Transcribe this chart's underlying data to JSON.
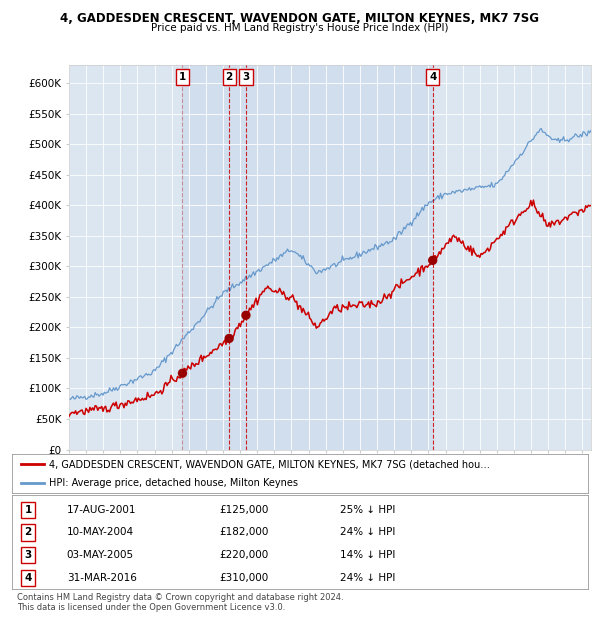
{
  "title1": "4, GADDESDEN CRESCENT, WAVENDON GATE, MILTON KEYNES, MK7 7SG",
  "title2": "Price paid vs. HM Land Registry's House Price Index (HPI)",
  "ylim": [
    0,
    630000
  ],
  "yticks": [
    0,
    50000,
    100000,
    150000,
    200000,
    250000,
    300000,
    350000,
    400000,
    450000,
    500000,
    550000,
    600000
  ],
  "ytick_labels": [
    "£0",
    "£50K",
    "£100K",
    "£150K",
    "£200K",
    "£250K",
    "£300K",
    "£350K",
    "£400K",
    "£450K",
    "£500K",
    "£550K",
    "£600K"
  ],
  "plot_bg": "#dce6f1",
  "transactions": [
    {
      "num": 1,
      "date": "17-AUG-2001",
      "price": 125000,
      "pct": "25%",
      "year": 2001.63,
      "vline_style": "--",
      "vline_color": "#c07070",
      "vline_alpha": 0.7
    },
    {
      "num": 2,
      "date": "10-MAY-2004",
      "price": 182000,
      "pct": "24%",
      "year": 2004.36,
      "vline_style": "--",
      "vline_color": "#cc0000",
      "vline_alpha": 0.85
    },
    {
      "num": 3,
      "date": "03-MAY-2005",
      "price": 220000,
      "pct": "14%",
      "year": 2005.34,
      "vline_style": "--",
      "vline_color": "#cc0000",
      "vline_alpha": 0.85
    },
    {
      "num": 4,
      "date": "31-MAR-2016",
      "price": 310000,
      "pct": "24%",
      "year": 2016.25,
      "vline_style": "--",
      "vline_color": "#cc0000",
      "vline_alpha": 0.85
    }
  ],
  "legend_line1": "4, GADDESDEN CRESCENT, WAVENDON GATE, MILTON KEYNES, MK7 7SG (detached hou…",
  "legend_line2": "HPI: Average price, detached house, Milton Keynes",
  "footnote": "Contains HM Land Registry data © Crown copyright and database right 2024.\nThis data is licensed under the Open Government Licence v3.0.",
  "hpi_color": "#6699cc",
  "price_color": "#cc0000",
  "marker_color": "#990000",
  "label_box_color": "#cc0000",
  "shade_color": "#c8d8eb"
}
